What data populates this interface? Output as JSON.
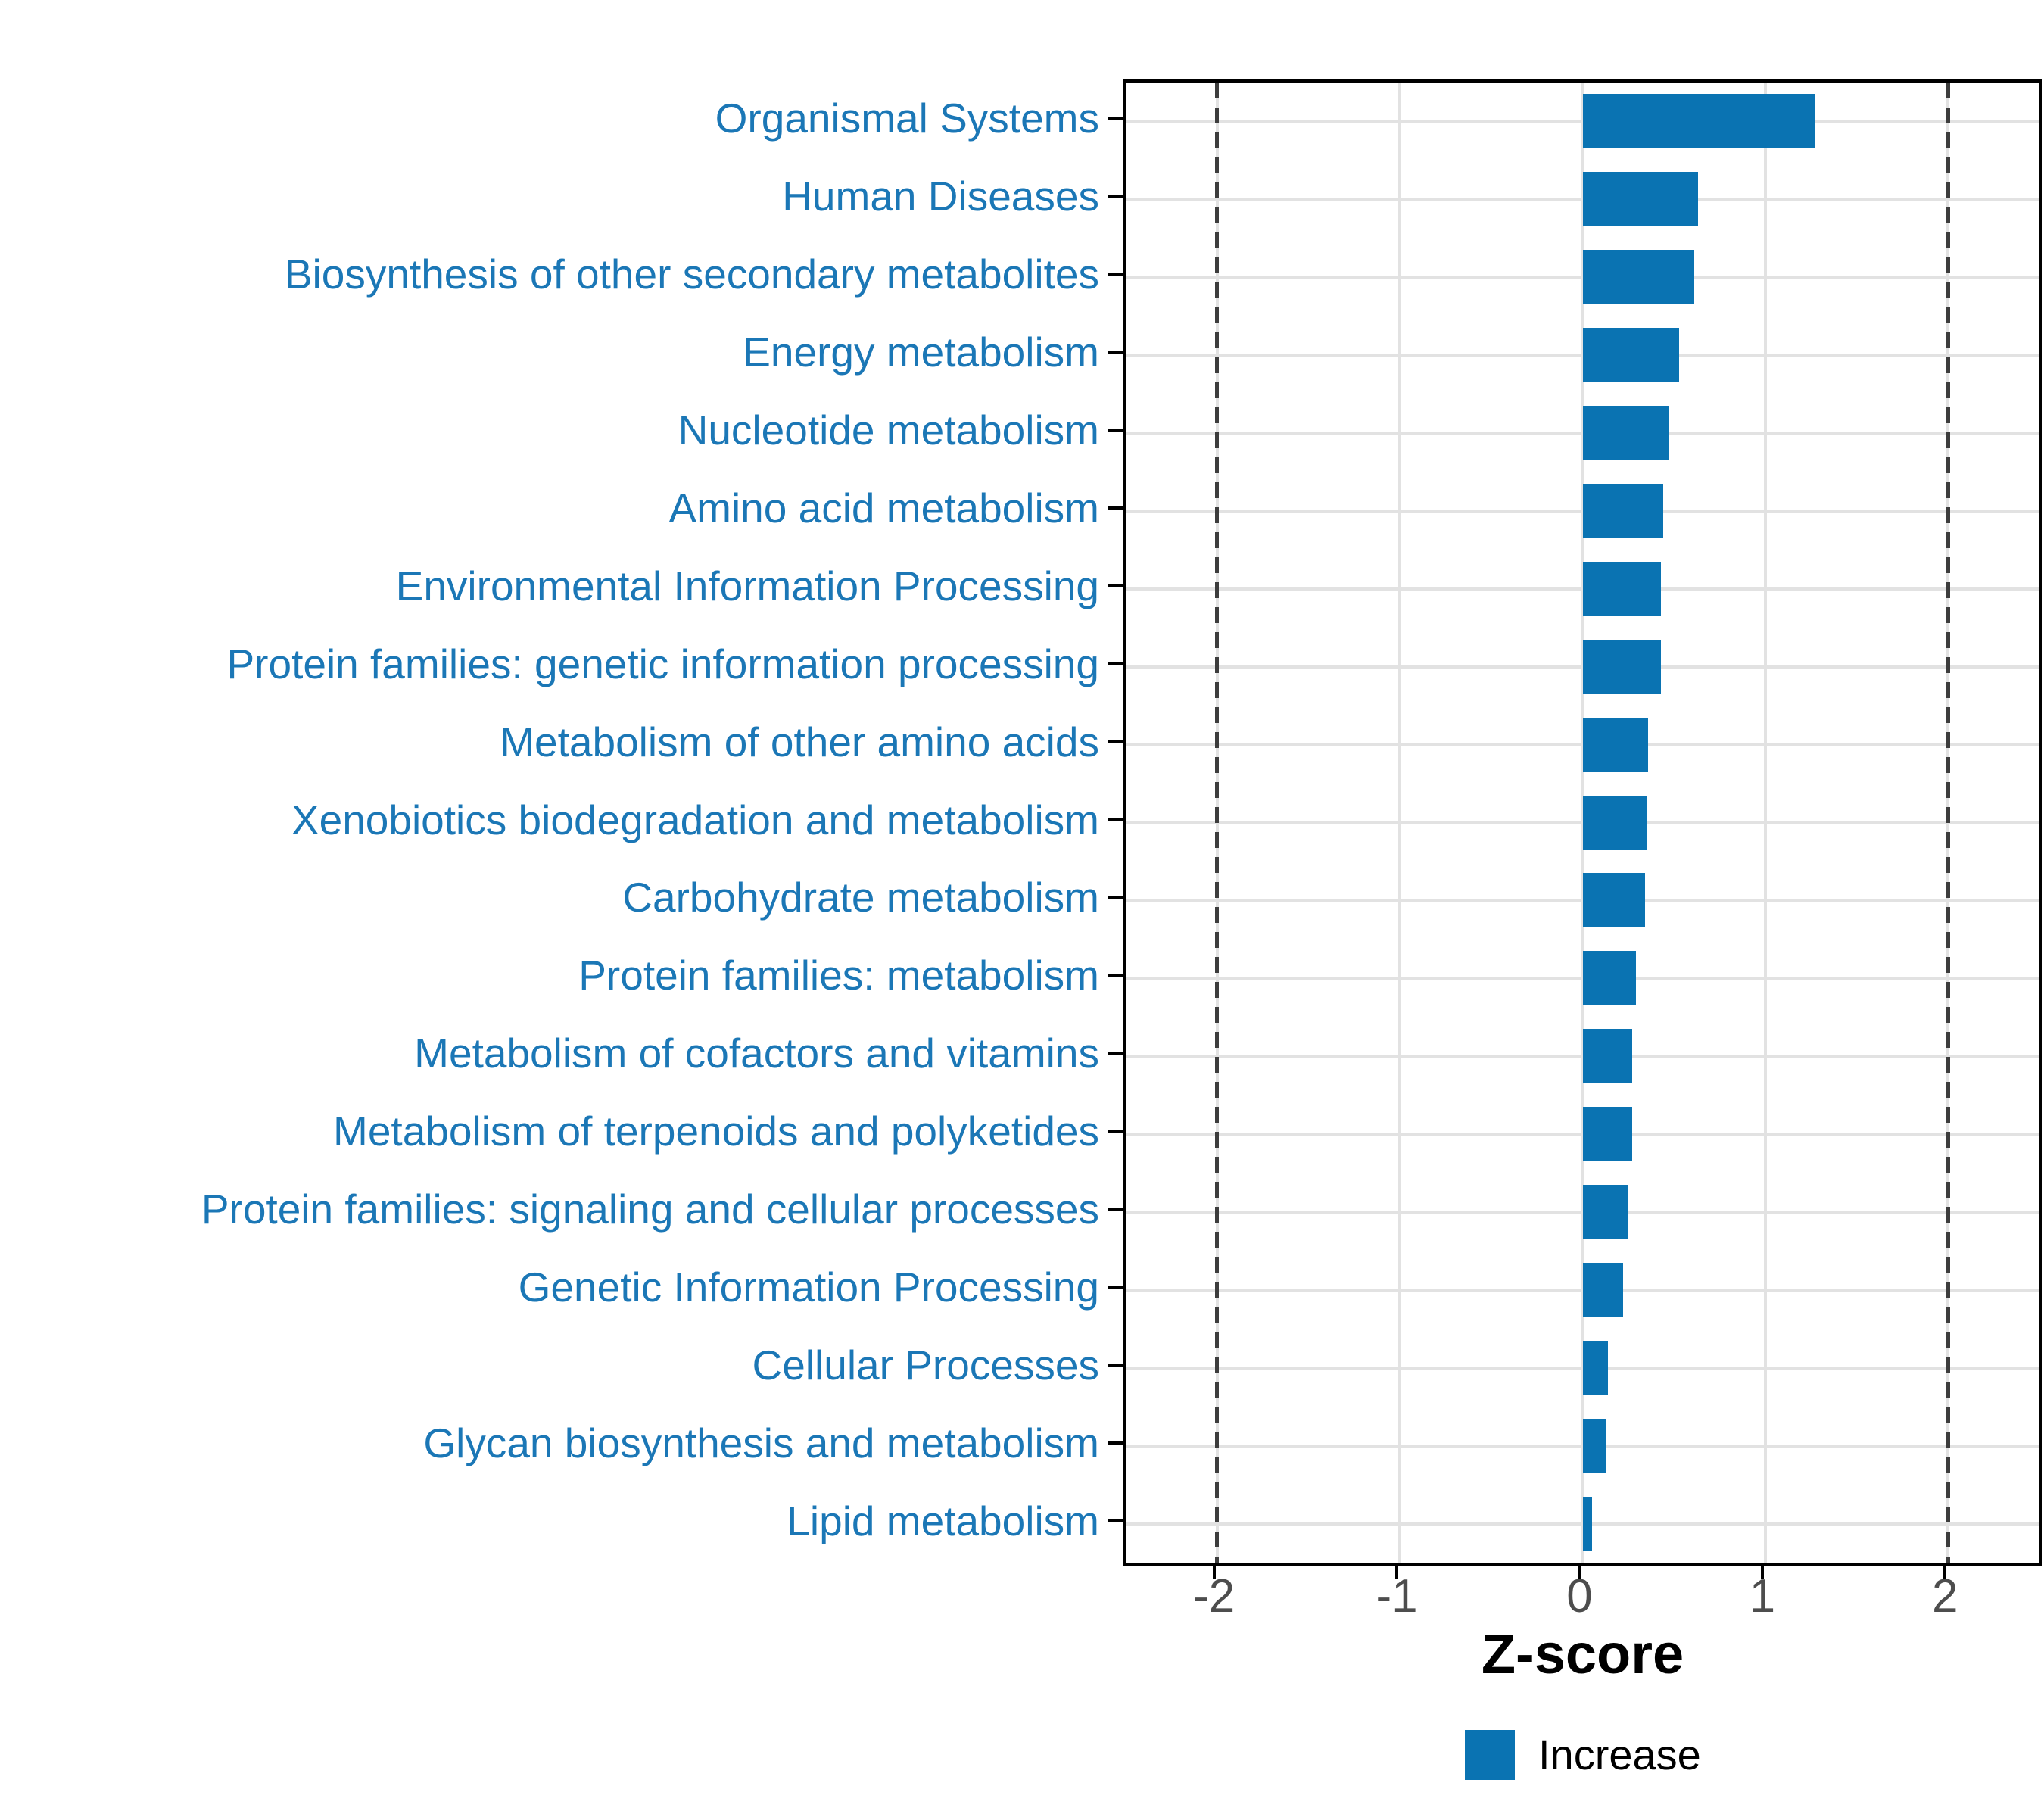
{
  "chart_data": {
    "type": "bar",
    "orientation": "horizontal",
    "title": "",
    "xlabel": "Z-score",
    "ylabel": "",
    "xlim": [
      -2.5,
      2.5
    ],
    "xticks": [
      -2,
      -1,
      0,
      1,
      2
    ],
    "dashed_guides": [
      -2,
      2
    ],
    "grid": true,
    "legend_position": "bottom",
    "categories": [
      "Organismal Systems",
      "Human Diseases",
      "Biosynthesis of other secondary metabolites",
      "Energy metabolism",
      "Nucleotide metabolism",
      "Amino acid metabolism",
      "Environmental Information Processing",
      "Protein families: genetic information processing",
      "Metabolism of other amino acids",
      "Xenobiotics biodegradation and metabolism",
      "Carbohydrate metabolism",
      "Protein families: metabolism",
      "Metabolism of cofactors and vitamins",
      "Metabolism of terpenoids and polyketides",
      "Protein families: signaling and cellular processes",
      "Genetic Information Processing",
      "Cellular Processes",
      "Glycan biosynthesis and metabolism",
      "Lipid metabolism"
    ],
    "values": [
      1.27,
      0.63,
      0.61,
      0.53,
      0.47,
      0.44,
      0.43,
      0.43,
      0.36,
      0.35,
      0.34,
      0.29,
      0.27,
      0.27,
      0.25,
      0.22,
      0.14,
      0.13,
      0.05
    ],
    "series": [
      {
        "name": "Increase",
        "color": "#0a73b2"
      }
    ],
    "colors": {
      "bar": "#0a73b2",
      "category_label": "#1b77b6",
      "tick_label": "#4d4d4d",
      "axis_title": "#000000",
      "gridline": "#e2e2e2",
      "dashed_line": "#3d3d3d",
      "panel_border": "#000000",
      "background": "#ffffff"
    }
  }
}
